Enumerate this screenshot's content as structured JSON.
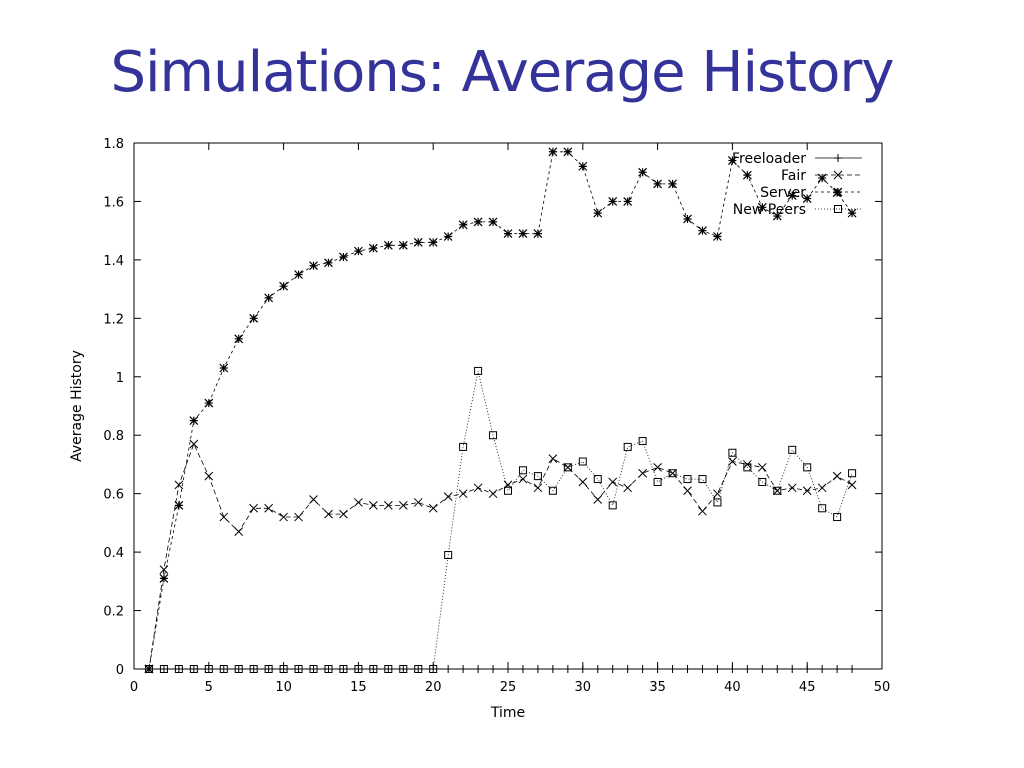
{
  "slide": {
    "title": "Simulations: Average History"
  },
  "chart_data": {
    "type": "line",
    "xlabel": "Time",
    "ylabel": "Average History",
    "xlim": [
      0,
      50
    ],
    "ylim": [
      0,
      1.8
    ],
    "xticks": [
      0,
      5,
      10,
      15,
      20,
      25,
      30,
      35,
      40,
      45,
      50
    ],
    "yticks": [
      0,
      0.2,
      0.4,
      0.6,
      0.8,
      1,
      1.2,
      1.4,
      1.6,
      1.8
    ],
    "xtick_labels": [
      "0",
      "5",
      "10",
      "15",
      "20",
      "25",
      "30",
      "35",
      "40",
      "45",
      "50"
    ],
    "ytick_labels": [
      "0",
      "0.2",
      "0.4",
      "0.6",
      "0.8",
      "1",
      "1.2",
      "1.4",
      "1.6",
      "1.8"
    ],
    "grid": false,
    "legend_position": "top-right",
    "x": [
      1,
      2,
      3,
      4,
      5,
      6,
      7,
      8,
      9,
      10,
      11,
      12,
      13,
      14,
      15,
      16,
      17,
      18,
      19,
      20,
      21,
      22,
      23,
      24,
      25,
      26,
      27,
      28,
      29,
      30,
      31,
      32,
      33,
      34,
      35,
      36,
      37,
      38,
      39,
      40,
      41,
      42,
      43,
      44,
      45,
      46,
      47,
      48
    ],
    "series": [
      {
        "name": "Freeloader",
        "marker": "plus",
        "dash": "",
        "values": [
          0,
          0,
          0,
          0,
          0,
          0,
          0,
          0,
          0,
          0,
          0,
          0,
          0,
          0,
          0,
          0,
          0,
          0,
          0,
          0,
          0,
          0,
          0,
          0,
          0,
          0,
          0,
          0,
          0,
          0,
          0,
          0,
          0,
          0,
          0,
          0,
          0,
          0,
          0,
          0,
          0,
          0,
          0,
          0,
          0,
          0,
          0,
          0
        ]
      },
      {
        "name": "Fair",
        "marker": "cross",
        "dash": "5,3",
        "values": [
          0,
          0.34,
          0.63,
          0.77,
          0.66,
          0.52,
          0.47,
          0.55,
          0.55,
          0.52,
          0.52,
          0.58,
          0.53,
          0.53,
          0.57,
          0.56,
          0.56,
          0.56,
          0.57,
          0.55,
          0.59,
          0.6,
          0.62,
          0.6,
          0.63,
          0.65,
          0.62,
          0.72,
          0.69,
          0.64,
          0.58,
          0.64,
          0.62,
          0.67,
          0.69,
          0.67,
          0.61,
          0.54,
          0.6,
          0.71,
          0.7,
          0.69,
          0.61,
          0.62,
          0.61,
          0.62,
          0.66,
          0.63
        ]
      },
      {
        "name": "Server",
        "marker": "star",
        "dash": "3,3",
        "values": [
          0,
          0.31,
          0.56,
          0.85,
          0.91,
          1.03,
          1.13,
          1.2,
          1.27,
          1.31,
          1.35,
          1.38,
          1.39,
          1.41,
          1.43,
          1.44,
          1.45,
          1.45,
          1.46,
          1.46,
          1.48,
          1.52,
          1.53,
          1.53,
          1.49,
          1.49,
          1.49,
          1.77,
          1.77,
          1.72,
          1.56,
          1.6,
          1.6,
          1.7,
          1.66,
          1.66,
          1.54,
          1.5,
          1.48,
          1.74,
          1.69,
          1.58,
          1.55,
          1.62,
          1.61,
          1.68,
          1.63,
          1.56
        ]
      },
      {
        "name": "New Peers",
        "marker": "square",
        "dash": "1,2",
        "values": [
          0,
          0,
          0,
          0,
          0,
          0,
          0,
          0,
          0,
          0,
          0,
          0,
          0,
          0,
          0,
          0,
          0,
          0,
          0,
          0,
          0.39,
          0.76,
          1.02,
          0.8,
          0.61,
          0.68,
          0.66,
          0.61,
          0.69,
          0.71,
          0.65,
          0.56,
          0.76,
          0.78,
          0.64,
          0.67,
          0.65,
          0.65,
          0.57,
          0.74,
          0.69,
          0.64,
          0.61,
          0.75,
          0.69,
          0.55,
          0.52,
          0.67
        ]
      }
    ],
    "colors": {
      "line": "#000000",
      "title": "#333399"
    }
  }
}
